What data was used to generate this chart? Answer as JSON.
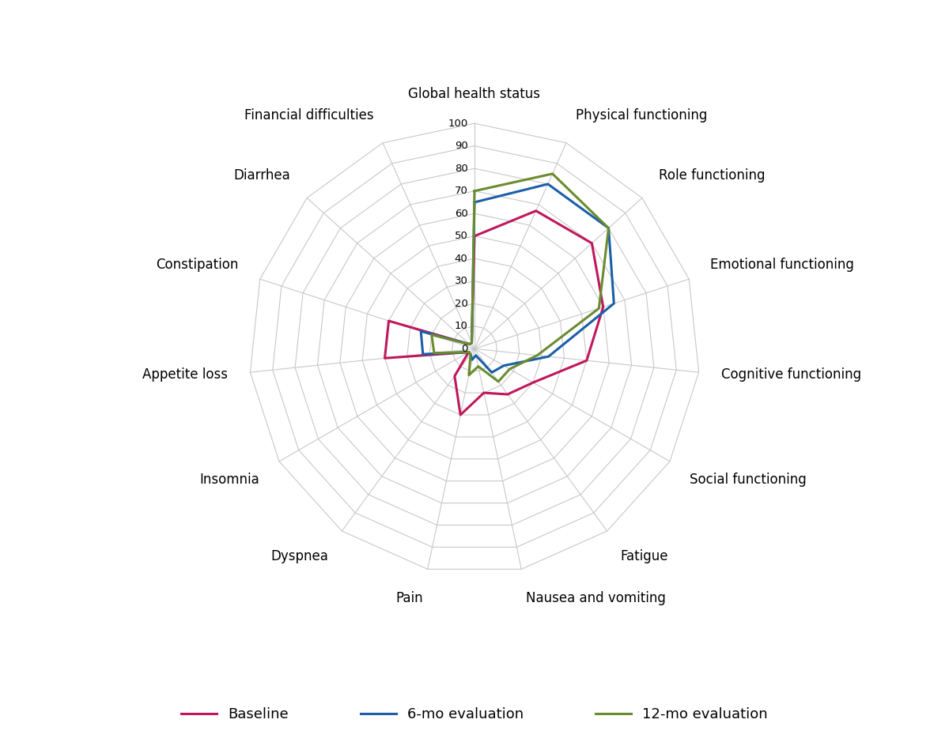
{
  "categories": [
    "Global health status",
    "Physical functioning",
    "Role functioning",
    "Emotional functioning",
    "Cognitive functioning",
    "Social functioning",
    "Fatigue",
    "Nausea and vomiting",
    "Pain",
    "Dyspnea",
    "Insomnia",
    "Appetite loss",
    "Constipation",
    "Diarrhea",
    "Financial difficulties"
  ],
  "baseline": [
    50,
    67,
    70,
    60,
    50,
    30,
    25,
    20,
    30,
    15,
    3,
    40,
    40,
    3,
    3
  ],
  "eval_6mo": [
    65,
    80,
    80,
    65,
    33,
    15,
    13,
    3,
    5,
    3,
    3,
    23,
    25,
    3,
    3
  ],
  "eval_12mo": [
    70,
    85,
    80,
    58,
    28,
    18,
    18,
    8,
    12,
    3,
    3,
    18,
    20,
    3,
    3
  ],
  "colors": {
    "Baseline": "#c0175d",
    "6-mo evaluation": "#1a5fa8",
    "12-mo evaluation": "#6a8c2e"
  },
  "r_max": 100,
  "r_ticks": [
    0,
    10,
    20,
    30,
    40,
    50,
    60,
    70,
    80,
    90,
    100
  ],
  "background_color": "#ffffff",
  "grid_color": "#c8c8c8",
  "label_fontsize": 12,
  "tick_fontsize": 9.5
}
